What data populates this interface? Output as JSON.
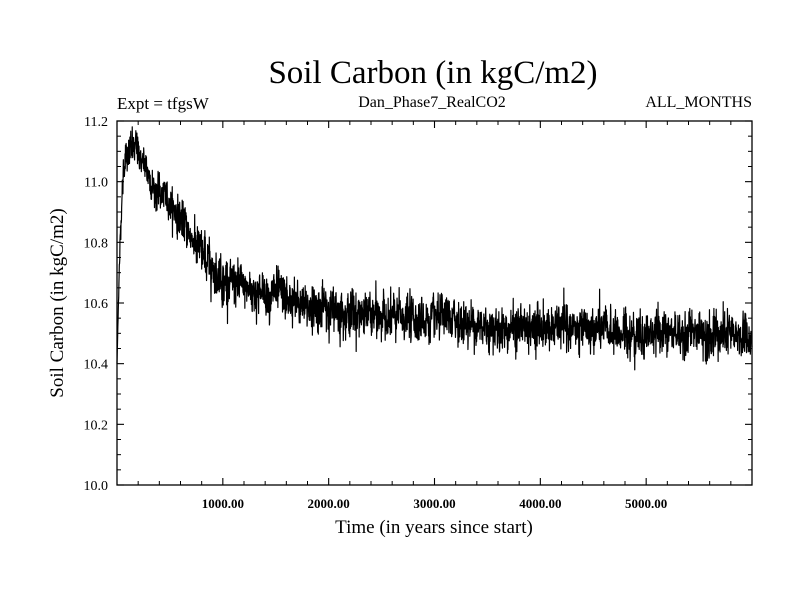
{
  "chart_data": {
    "type": "line",
    "title": "Soil Carbon (in kgC/m2)",
    "experiment_label": "Expt = tfgsW",
    "run_label": "Dan_Phase7_RealCO2",
    "period_label": "ALL_MONTHS",
    "xlabel": "Time (in years since start)",
    "ylabel": "Soil Carbon (in kgC/m2)",
    "xlim": [
      0,
      6000
    ],
    "ylim": [
      10.0,
      11.2
    ],
    "x_ticks": [
      1000,
      2000,
      3000,
      4000,
      5000
    ],
    "x_tick_labels": [
      "1000.00",
      "2000.00",
      "3000.00",
      "4000.00",
      "5000.00"
    ],
    "y_ticks": [
      10.0,
      10.2,
      10.4,
      10.6,
      10.8,
      11.0,
      11.2
    ],
    "y_tick_labels": [
      "10.0",
      "10.2",
      "10.4",
      "10.6",
      "10.8",
      "11.0",
      "11.2"
    ],
    "series": [
      {
        "name": "Soil Carbon",
        "color": "#000000",
        "x": [
          0,
          20,
          40,
          60,
          80,
          100,
          150,
          200,
          250,
          300,
          350,
          400,
          450,
          500,
          600,
          700,
          800,
          900,
          1000,
          1100,
          1200,
          1300,
          1400,
          1500,
          1600,
          1700,
          1800,
          2000,
          2200,
          2400,
          2600,
          2800,
          3000,
          3200,
          3400,
          3600,
          3800,
          4000,
          4200,
          4400,
          4600,
          4800,
          5000,
          5200,
          5400,
          5600,
          5800,
          6000
        ],
        "values": [
          10.4,
          10.7,
          10.9,
          11.03,
          11.08,
          11.1,
          11.11,
          11.1,
          11.06,
          11.02,
          10.98,
          10.96,
          10.95,
          10.93,
          10.88,
          10.82,
          10.76,
          10.72,
          10.68,
          10.66,
          10.65,
          10.64,
          10.63,
          10.63,
          10.61,
          10.59,
          10.59,
          10.58,
          10.57,
          10.56,
          10.55,
          10.55,
          10.54,
          10.54,
          10.53,
          10.52,
          10.52,
          10.52,
          10.52,
          10.51,
          10.51,
          10.5,
          10.5,
          10.5,
          10.5,
          10.5,
          10.49,
          10.49
        ],
        "noise_amplitude": [
          0.0,
          0.02,
          0.03,
          0.04,
          0.04,
          0.04,
          0.04,
          0.04,
          0.04,
          0.04,
          0.04,
          0.04,
          0.04,
          0.04,
          0.04,
          0.04,
          0.05,
          0.05,
          0.05,
          0.05,
          0.05,
          0.05,
          0.05,
          0.05,
          0.05,
          0.05,
          0.05,
          0.05,
          0.05,
          0.05,
          0.05,
          0.05,
          0.05,
          0.05,
          0.05,
          0.05,
          0.05,
          0.05,
          0.05,
          0.05,
          0.05,
          0.05,
          0.05,
          0.05,
          0.05,
          0.05,
          0.05,
          0.05
        ]
      }
    ]
  }
}
